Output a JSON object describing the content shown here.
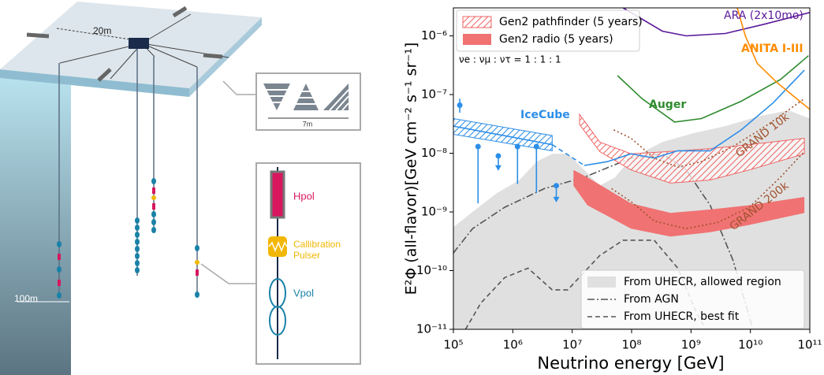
{
  "diagram": {
    "spacing_label": "20m",
    "depth_label": "100m",
    "station_width_label": "7m",
    "antennas": {
      "hpol": "Hpol",
      "calibration": [
        "Callibration",
        "Pulser"
      ],
      "vpol": "Vpol"
    }
  },
  "chart_data": {
    "type": "line",
    "x_label": "Neutrino energy [GeV]",
    "y_label": "E²Φ (all-flavor)[GeV cm⁻² s⁻¹ sr⁻¹]",
    "annotation": "νe : νμ : ντ = 1 : 1 : 1",
    "xscale": "log",
    "yscale": "log",
    "xlim": [
      100000.0,
      100000000000.0
    ],
    "ylim": [
      1e-11,
      3e-06
    ],
    "xticks": [
      {
        "value": 100000.0,
        "label": "10⁵"
      },
      {
        "value": 1000000.0,
        "label": "10⁶"
      },
      {
        "value": 10000000.0,
        "label": "10⁷"
      },
      {
        "value": 100000000.0,
        "label": "10⁸"
      },
      {
        "value": 1000000000.0,
        "label": "10⁹"
      },
      {
        "value": 10000000000.0,
        "label": "10¹⁰"
      },
      {
        "value": 100000000000.0,
        "label": "10¹¹"
      }
    ],
    "yticks": [
      {
        "value": 1e-11,
        "label": "10⁻¹¹"
      },
      {
        "value": 1e-10,
        "label": "10⁻¹⁰"
      },
      {
        "value": 1e-09,
        "label": "10⁻⁹"
      },
      {
        "value": 1e-08,
        "label": "10⁻⁸"
      },
      {
        "value": 1e-07,
        "label": "10⁻⁷"
      },
      {
        "value": 1e-06,
        "label": "10⁻⁶"
      }
    ],
    "series": [
      {
        "name": "From UHECR, allowed region",
        "kind": "area",
        "color": "#e0e0e0",
        "legend": "lower right",
        "x": [
          100000.0,
          210000.0,
          540000.0,
          1300000.0,
          2500000.0,
          4600000.0,
          8400000.0,
          16000000.0,
          29000000.0,
          53000000.0,
          98000000.0,
          330000000.0,
          1100000000.0,
          3800000000.0,
          13000000000.0,
          44000000000.0,
          100000000000.0
        ],
        "values": [
          5.5e-10,
          1e-09,
          2.1e-09,
          3.5e-09,
          7.2e-09,
          9.8e-09,
          9.8e-09,
          5.2e-09,
          2.8e-09,
          3.9e-09,
          8.3e-09,
          1.55e-08,
          2.2e-08,
          2.9e-08,
          4.2e-08,
          5.4e-08,
          3.9e-08
        ]
      },
      {
        "name": "From AGN",
        "kind": "line",
        "dash": "dashdot",
        "color": "#555555",
        "legend": "lower right",
        "x": [
          100000.0,
          210000.0,
          730000.0,
          3400000.0,
          16000000.0,
          98000000.0,
          330000000.0,
          830000000.0,
          2100000000.0,
          5100000000.0,
          11000000000.0
        ],
        "values": [
          2e-10,
          5.2e-10,
          1.2e-09,
          2.5e-09,
          3.9e-09,
          8.3e-09,
          9.8e-09,
          5.2e-09,
          1.3e-09,
          1.5e-10,
          1e-11
        ]
      },
      {
        "name": "From UHECR, best fit",
        "kind": "line",
        "dash": "dashed",
        "color": "#555555",
        "legend": "lower right",
        "x": [
          160000.0,
          290000.0,
          730000.0,
          1800000.0,
          4600000.0,
          8400000.0,
          29000000.0,
          72000000.0,
          240000000.0,
          600000000.0,
          1300000000.0,
          1800000000.0
        ],
        "values": [
          1e-11,
          2.8e-11,
          7.6e-11,
          1.1e-10,
          4.7e-11,
          4.7e-11,
          1.8e-10,
          3.3e-10,
          3.3e-10,
          1.1e-10,
          1.7e-11,
          1e-11
        ]
      },
      {
        "name": "Gen2 pathfinder (5 years)",
        "kind": "band",
        "hatch": true,
        "color": "#f06464",
        "legend": "upper left",
        "x": [
          13300000.0,
          29000000.0,
          98000000.0,
          450000000.0,
          2100000000.0,
          9600000000.0,
          81000000000.0
        ],
        "lower": [
          3.1e-08,
          1.07e-08,
          5.2e-09,
          3.1e-09,
          3.5e-09,
          5.2e-09,
          9.8e-09
        ],
        "upper": [
          4.6e-08,
          1.55e-08,
          9.8e-09,
          1.07e-08,
          1.2e-08,
          1.4e-08,
          1.8e-08
        ]
      },
      {
        "name": "Gen2 radio (5 years)",
        "kind": "band",
        "hatch": false,
        "color": "#f07272",
        "legend": "upper left",
        "x": [
          10500000.0,
          18000000.0,
          98000000.0,
          450000000.0,
          2100000000.0,
          9600000000.0,
          81000000000.0
        ],
        "lower": [
          2.8e-09,
          1.3e-09,
          5.2e-10,
          3.8e-10,
          4.5e-10,
          6e-10,
          9.6e-10
        ],
        "upper": [
          5.2e-09,
          3.9e-09,
          1.4e-09,
          9.6e-10,
          1.1e-09,
          1.3e-09,
          1.8e-09
        ]
      },
      {
        "kind": "band",
        "hatch": true,
        "color": "#2c8ee8",
        "x": [
          100000.0,
          4600000.0
        ],
        "lower": [
          2.1e-08,
          1.1e-08
        ],
        "upper": [
          3.9e-08,
          2e-08
        ]
      },
      {
        "kind": "line",
        "color": "#2c8ee8",
        "x": [
          100000.0,
          4600000.0
        ],
        "values": [
          2.9e-08,
          1.4e-08
        ]
      },
      {
        "kind": "line",
        "dash": "dashed",
        "color": "#2c8ee8",
        "x": [
          4600000.0,
          16000000.0
        ],
        "values": [
          1.4e-08,
          6.2e-09
        ]
      },
      {
        "name": "IceCube",
        "kind": "line",
        "color": "#2c8ee8",
        "weight": "bold",
        "x": [
          16000000.0,
          39000000.0,
          98000000.0,
          240000000.0,
          600000000.0,
          2100000000.0,
          7000000000.0,
          24000000000.0,
          81000000000.0
        ],
        "values": [
          6.2e-09,
          7.2e-09,
          9.8e-09,
          8.3e-09,
          1.1e-08,
          1.1e-08,
          2.5e-08,
          7.2e-08,
          2.6e-07
        ]
      },
      {
        "kind": "points",
        "color": "#2c8ee8",
        "x": [
          128000.0,
          260000.0,
          570000.0,
          1200000.0,
          2500000.0,
          5400000.0
        ],
        "values": [
          6.6e-08,
          1.3e-08,
          9e-09,
          1.3e-08,
          1.3e-08,
          2.8e-09
        ],
        "lower": [
          4.9e-08,
          1.4e-09,
          5.2e-09,
          3e-09,
          2.1e-09,
          1.5e-09
        ],
        "upper": [
          8.5e-08,
          null,
          null,
          null,
          null,
          null
        ],
        "arrow": [
          false,
          false,
          true,
          false,
          false,
          true
        ]
      },
      {
        "name": "Auger",
        "kind": "line",
        "color": "#2e8b2e",
        "weight": "bold",
        "x": [
          58000000.0,
          150000000.0,
          530000000.0,
          1500000000.0,
          7000000000.0,
          32000000000.0,
          95000000000.0
        ],
        "values": [
          2.1e-07,
          8.5e-08,
          3.4e-08,
          3.9e-08,
          7.7e-08,
          1.8e-07,
          4.6e-07
        ]
      },
      {
        "name": "ARA (2x10mo)",
        "kind": "line",
        "color": "#5a189a",
        "weight": "normal",
        "x": [
          72000000.0,
          330000000.0,
          830000000.0,
          3800000000.0,
          18000000000.0,
          100000000000.0
        ],
        "values": [
          3e-06,
          1.2e-06,
          1e-06,
          1.1e-06,
          1.6e-06,
          2.5e-06
        ]
      },
      {
        "name": "ANITA I-III",
        "kind": "line",
        "color": "#ff8c00",
        "weight": "bold",
        "x": [
          6000000000.0,
          8200000000.0,
          13000000000.0,
          28000000000.0,
          60000000000.0,
          100000000000.0
        ],
        "values": [
          3e-06,
          1e-06,
          3.4e-07,
          1.6e-07,
          8.5e-08,
          5.6e-08
        ]
      },
      {
        "name": "GRAND 10k",
        "kind": "line",
        "dash": "dotted",
        "color": "#a0522d",
        "weight": "normal",
        "x": [
          50000000.0,
          98000000.0,
          240000000.0,
          600000000.0,
          1500000000.0,
          5100000000.0,
          18000000000.0,
          81000000000.0
        ],
        "values": [
          2.5e-08,
          1.8e-08,
          8.3e-09,
          5.8e-09,
          7.2e-09,
          1.3e-08,
          2.9e-08,
          8.5e-08
        ]
      },
      {
        "name": "GRAND 200k",
        "kind": "line",
        "dash": "dotted",
        "color": "#a0522d",
        "weight": "normal",
        "x": [
          46000000.0,
          98000000.0,
          240000000.0,
          820000000.0,
          2800000000.0,
          9600000000.0,
          32000000000.0,
          81000000000.0
        ],
        "values": [
          2.5e-09,
          1.5e-09,
          7e-10,
          5.2e-10,
          6.6e-10,
          1.2e-09,
          3.9e-09,
          1.07e-08
        ]
      }
    ]
  }
}
